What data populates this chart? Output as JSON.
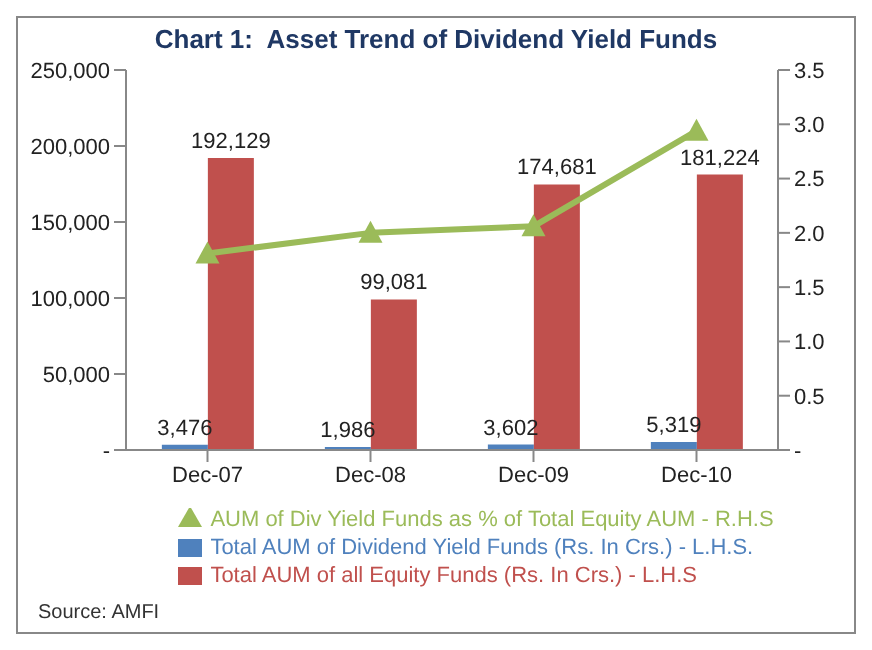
{
  "chart_data": {
    "type": "bar",
    "title": "Chart 1:  Asset Trend of Dividend Yield Funds",
    "categories": [
      "Dec-07",
      "Dec-08",
      "Dec-09",
      "Dec-10"
    ],
    "series": [
      {
        "name": "Total AUM of Dividend Yield Funds (Rs. In Crs.) - L.H.S.",
        "color": "#4f81bd",
        "values": [
          3476,
          1986,
          3602,
          5319
        ],
        "value_labels": [
          "3,476",
          "1,986",
          "3,602",
          "5,319"
        ]
      },
      {
        "name": "Total AUM of all Equity Funds (Rs. In Crs.) - L.H.S",
        "color": "#c0504d",
        "values": [
          192129,
          99081,
          174681,
          181224
        ],
        "value_labels": [
          "192,129",
          "99,081",
          "174,681",
          "181,224"
        ]
      },
      {
        "name": "AUM of Div Yield Funds as % of Total Equity AUM - R.H.S",
        "type": "line",
        "axis": "y2",
        "color": "#9bbb59",
        "values": [
          1.81,
          2.0,
          2.06,
          2.94
        ],
        "marker": "triangle"
      }
    ],
    "ylim": [
      0,
      250000
    ],
    "yticks": [
      {
        "value": 0,
        "label": "-"
      },
      {
        "value": 50000,
        "label": "50,000"
      },
      {
        "value": 100000,
        "label": "100,000"
      },
      {
        "value": 150000,
        "label": "150,000"
      },
      {
        "value": 200000,
        "label": "200,000"
      },
      {
        "value": 250000,
        "label": "250,000"
      }
    ],
    "y2lim": [
      0,
      3.5
    ],
    "y2ticks": [
      {
        "value": 0,
        "label": "-"
      },
      0.5,
      {
        "value": 1,
        "label": "1.0"
      },
      1.5,
      {
        "value": 2,
        "label": "2.0"
      },
      2.5,
      {
        "value": 3,
        "label": "3.0"
      },
      3.5
    ],
    "grid": false,
    "legend": "bottom",
    "annotations": [
      "Source: AMFI"
    ]
  }
}
